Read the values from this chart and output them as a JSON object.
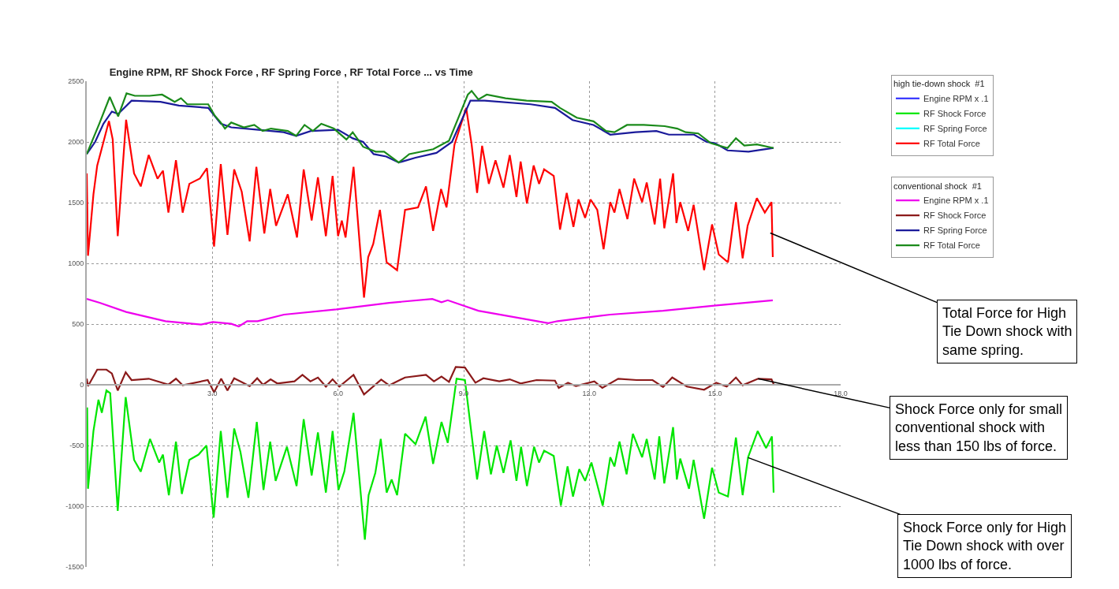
{
  "chart_data": {
    "type": "line",
    "title": "Engine RPM, RF Shock Force , RF Spring Force , RF Total Force ... vs Time",
    "legend_title": [
      "high tie-down shock  #1",
      "conventional shock  #1"
    ],
    "xlim": [
      0,
      18
    ],
    "xticks": [
      {
        "value": 3,
        "label": "3.0"
      },
      {
        "value": 6,
        "label": "6.0"
      },
      {
        "value": 9,
        "label": "9.0"
      },
      {
        "value": 12,
        "label": "12.0"
      },
      {
        "value": 15,
        "label": "15.0"
      },
      {
        "value": 18,
        "label": "18.0"
      }
    ],
    "ylim": [
      -1500,
      2500
    ],
    "yticks": [
      -1500,
      -1000,
      -500,
      0,
      500,
      1000,
      1500,
      2000,
      2500
    ],
    "grid": true,
    "legend": "top right",
    "series": [
      {
        "name": "Engine RPM x .1",
        "color": "#3333ff"
      },
      {
        "name": "RF Shock Force",
        "color": "#00e600",
        "x": [
          0.01,
          0.03,
          0.16,
          0.28,
          0.36,
          0.47,
          0.56,
          0.74,
          0.93,
          1.13,
          1.29,
          1.51,
          1.73,
          1.82,
          1.96,
          2.13,
          2.27,
          2.45,
          2.67,
          2.86,
          3.03,
          3.2,
          3.36,
          3.52,
          3.67,
          3.86,
          4.06,
          4.22,
          4.38,
          4.51,
          4.78,
          5.01,
          5.18,
          5.37,
          5.52,
          5.71,
          5.87,
          6.01,
          6.15,
          6.37,
          6.64,
          6.73,
          6.89,
          7.02,
          7.16,
          7.28,
          7.41,
          7.6,
          7.85,
          8.09,
          8.27,
          8.47,
          8.62,
          8.83,
          9.03,
          9.32,
          9.49,
          9.65,
          9.79,
          9.95,
          10.12,
          10.26,
          10.37,
          10.51,
          10.68,
          10.8,
          10.92,
          11.15,
          11.32,
          11.48,
          11.61,
          11.76,
          11.9,
          12.05,
          12.32,
          12.5,
          12.6,
          12.72,
          12.89,
          13.04,
          13.26,
          13.37,
          13.56,
          13.67,
          13.79,
          14.0,
          14.09,
          14.17,
          14.38,
          14.49,
          14.74,
          14.93,
          15.09,
          15.31,
          15.5,
          15.66,
          15.79,
          16.02,
          16.22,
          16.36,
          16.4
        ],
        "values": [
          -187,
          -856,
          -381,
          -123,
          -231,
          -47,
          -69,
          -1039,
          -101,
          -618,
          -715,
          -446,
          -640,
          -575,
          -909,
          -468,
          -899,
          -618,
          -575,
          -500,
          -1093,
          -381,
          -931,
          -360,
          -554,
          -931,
          -306,
          -866,
          -468,
          -791,
          -511,
          -834,
          -284,
          -748,
          -392,
          -888,
          -381,
          -866,
          -715,
          -231,
          -1276,
          -909,
          -726,
          -446,
          -888,
          -780,
          -909,
          -403,
          -489,
          -263,
          -651,
          -306,
          -478,
          50,
          39,
          -780,
          -381,
          -737,
          -500,
          -726,
          -457,
          -791,
          -511,
          -834,
          -511,
          -640,
          -543,
          -586,
          -996,
          -672,
          -920,
          -694,
          -791,
          -640,
          -996,
          -597,
          -672,
          -468,
          -737,
          -403,
          -597,
          -446,
          -780,
          -425,
          -812,
          -349,
          -780,
          -608,
          -856,
          -618,
          -1103,
          -683,
          -888,
          -920,
          -435,
          -909,
          -597,
          -381,
          -521,
          -425,
          -888
        ]
      },
      {
        "name": "RF Spring Force",
        "color": "#00ffff"
      },
      {
        "name": "RF Total Force",
        "color": "#ff0000",
        "x": [
          0,
          0.03,
          0.16,
          0.25,
          0.35,
          0.53,
          0.62,
          0.74,
          0.94,
          1.13,
          1.29,
          1.48,
          1.69,
          1.82,
          1.95,
          2.13,
          2.29,
          2.45,
          2.7,
          2.87,
          3.04,
          3.2,
          3.36,
          3.52,
          3.7,
          3.89,
          4.05,
          4.24,
          4.38,
          4.52,
          4.8,
          5.02,
          5.18,
          5.37,
          5.52,
          5.71,
          5.87,
          6.0,
          6.09,
          6.18,
          6.37,
          6.62,
          6.72,
          6.84,
          7.0,
          7.16,
          7.41,
          7.6,
          7.91,
          8.1,
          8.27,
          8.46,
          8.59,
          8.78,
          9.06,
          9.19,
          9.32,
          9.44,
          9.6,
          9.76,
          9.95,
          10.1,
          10.26,
          10.36,
          10.51,
          10.67,
          10.8,
          10.92,
          11.15,
          11.3,
          11.46,
          11.62,
          11.74,
          11.9,
          12.03,
          12.19,
          12.34,
          12.5,
          12.6,
          12.72,
          12.91,
          13.07,
          13.26,
          13.37,
          13.56,
          13.69,
          13.79,
          14.0,
          14.08,
          14.17,
          14.36,
          14.49,
          14.74,
          14.93,
          15.09,
          15.31,
          15.5,
          15.66,
          15.78,
          16.0,
          16.19,
          16.35,
          16.38
        ],
        "values": [
          1741,
          1063,
          1569,
          1806,
          1935,
          2172,
          2021,
          1224,
          2183,
          1741,
          1634,
          1892,
          1698,
          1763,
          1418,
          1849,
          1418,
          1655,
          1698,
          1784,
          1138,
          1817,
          1235,
          1774,
          1591,
          1181,
          1795,
          1246,
          1612,
          1310,
          1569,
          1213,
          1774,
          1353,
          1709,
          1224,
          1720,
          1224,
          1353,
          1213,
          1795,
          718,
          1052,
          1160,
          1440,
          1009,
          944,
          1440,
          1461,
          1634,
          1267,
          1612,
          1461,
          1978,
          2280,
          1978,
          1580,
          1968,
          1655,
          1849,
          1623,
          1892,
          1547,
          1838,
          1493,
          1806,
          1655,
          1774,
          1720,
          1278,
          1580,
          1300,
          1526,
          1375,
          1526,
          1440,
          1117,
          1504,
          1418,
          1612,
          1364,
          1698,
          1504,
          1666,
          1321,
          1698,
          1289,
          1741,
          1332,
          1504,
          1267,
          1483,
          944,
          1321,
          1073,
          1009,
          1504,
          1041,
          1310,
          1537,
          1418,
          1504,
          1052
        ]
      },
      {
        "name": "Engine RPM x .1",
        "color": "#ee00ee",
        "x": [
          0,
          0.31,
          0.94,
          1.88,
          2.73,
          3.01,
          3.45,
          3.63,
          3.83,
          4.08,
          4.71,
          5.96,
          7.22,
          8.25,
          8.47,
          8.62,
          9.35,
          11.02,
          11.24,
          12.5,
          13.76,
          15.03,
          16.38
        ],
        "values": [
          707,
          675,
          600,
          524,
          496,
          517,
          502,
          481,
          524,
          524,
          578,
          621,
          675,
          707,
          680,
          696,
          610,
          507,
          524,
          578,
          610,
          653,
          696
        ]
      },
      {
        "name": "RF Shock Force",
        "color": "#8b1a1a",
        "x": [
          0,
          0.03,
          0.25,
          0.47,
          0.6,
          0.74,
          0.93,
          1.07,
          1.48,
          1.95,
          2.13,
          2.29,
          2.89,
          3.04,
          3.21,
          3.36,
          3.52,
          3.89,
          4.07,
          4.21,
          4.39,
          4.55,
          4.96,
          5.15,
          5.34,
          5.52,
          5.71,
          5.87,
          6.03,
          6.37,
          6.62,
          7.03,
          7.22,
          7.6,
          8.1,
          8.29,
          8.47,
          8.65,
          8.81,
          9.03,
          9.28,
          9.47,
          9.85,
          10.1,
          10.36,
          10.74,
          11.18,
          11.27,
          11.49,
          11.68,
          12.12,
          12.31,
          12.69,
          13.13,
          13.51,
          13.76,
          13.98,
          14.33,
          14.74,
          15.03,
          15.28,
          15.5,
          15.66,
          16.03,
          16.35,
          16.4
        ],
        "values": [
          50,
          -11,
          125,
          125,
          93,
          -47,
          103,
          39,
          50,
          2,
          50,
          -4,
          39,
          -62,
          50,
          -47,
          54,
          -11,
          54,
          0,
          45,
          11,
          28,
          82,
          28,
          60,
          -15,
          45,
          -15,
          82,
          -80,
          43,
          -4,
          60,
          82,
          28,
          67,
          24,
          147,
          142,
          17,
          54,
          28,
          45,
          11,
          39,
          34,
          -26,
          17,
          -11,
          28,
          -26,
          50,
          39,
          39,
          -19,
          60,
          -15,
          -41,
          17,
          -15,
          60,
          -4,
          50,
          45,
          6
        ]
      },
      {
        "name": "RF Spring Force",
        "color": "#1a1a9a",
        "x": [
          0,
          0.2,
          0.4,
          0.6,
          0.75,
          1.07,
          1.76,
          2.2,
          2.9,
          3.2,
          3.45,
          4.1,
          4.7,
          5.0,
          5.35,
          6.0,
          6.35,
          6.6,
          6.85,
          7.15,
          7.45,
          7.85,
          8.35,
          8.72,
          9.16,
          9.5,
          10.6,
          11.18,
          11.6,
          12.1,
          12.5,
          13.1,
          13.6,
          13.9,
          14.5,
          14.8,
          15.0,
          15.3,
          15.8,
          16.4
        ],
        "values": [
          1900,
          2000,
          2150,
          2250,
          2230,
          2340,
          2330,
          2300,
          2280,
          2150,
          2120,
          2100,
          2080,
          2050,
          2090,
          2100,
          2030,
          2000,
          1900,
          1880,
          1830,
          1870,
          1910,
          2000,
          2340,
          2340,
          2310,
          2280,
          2180,
          2140,
          2060,
          2080,
          2090,
          2060,
          2060,
          2000,
          1990,
          1930,
          1920,
          1950
        ]
      },
      {
        "name": "RF Total Force",
        "color": "#1a8a1a",
        "x": [
          0,
          0.3,
          0.55,
          0.75,
          0.95,
          1.15,
          1.5,
          1.8,
          2.1,
          2.25,
          2.4,
          2.9,
          3.05,
          3.2,
          3.3,
          3.45,
          3.75,
          4.0,
          4.2,
          4.4,
          4.8,
          5.0,
          5.2,
          5.4,
          5.6,
          5.9,
          6.2,
          6.35,
          6.6,
          6.9,
          7.1,
          7.45,
          7.7,
          8.27,
          8.65,
          9.1,
          9.19,
          9.35,
          9.55,
          10.0,
          10.5,
          11.1,
          11.3,
          11.7,
          12.1,
          12.4,
          12.6,
          12.9,
          13.3,
          13.8,
          14.1,
          14.3,
          14.6,
          14.9,
          15.3,
          15.5,
          15.7,
          16.0,
          16.4
        ],
        "values": [
          1900,
          2150,
          2370,
          2210,
          2400,
          2380,
          2380,
          2390,
          2330,
          2360,
          2310,
          2310,
          2220,
          2160,
          2110,
          2160,
          2120,
          2140,
          2090,
          2110,
          2090,
          2050,
          2140,
          2090,
          2150,
          2110,
          2020,
          2080,
          1960,
          1920,
          1920,
          1830,
          1900,
          1940,
          2010,
          2390,
          2420,
          2350,
          2390,
          2360,
          2340,
          2330,
          2280,
          2200,
          2170,
          2090,
          2080,
          2140,
          2140,
          2130,
          2110,
          2080,
          2070,
          1990,
          1950,
          2030,
          1970,
          1980,
          1950
        ]
      }
    ],
    "annotations": [
      {
        "text": "Total Force for High Tie Down shock with same spring.",
        "x": 16.32,
        "y": 1250
      },
      {
        "text": "Shock Force only for small conventional shock with less than 150 lbs of force.",
        "x": 16.03,
        "y": 50
      },
      {
        "text": "Shock Force only for High Tie Down shock with over 1000 lbs of force.",
        "x": 15.79,
        "y": -600
      }
    ]
  }
}
